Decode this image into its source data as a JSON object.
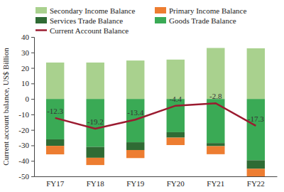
{
  "chart_data": {
    "type": "bar",
    "stacked": true,
    "legend": "top",
    "y_label": "Current account balance, US$ Billion",
    "categories": [
      "FY17",
      "FY18",
      "FY19",
      "FY20",
      "FY21",
      "FY22"
    ],
    "series": [
      {
        "name": "Secondary Income Balance",
        "type": "bar",
        "color": "#a9d18e",
        "values": [
          23.5,
          23.5,
          24.8,
          25.4,
          32.9,
          32.7
        ]
      },
      {
        "name": "Primary Income Balance",
        "type": "bar",
        "color": "#ed7d31",
        "values": [
          -5.5,
          -4.7,
          -5.2,
          -4.8,
          -5.2,
          -4.9
        ]
      },
      {
        "name": "Services Trade Balance",
        "type": "bar",
        "color": "#2f6b34",
        "values": [
          -4.2,
          -7.0,
          -5.0,
          -3.5,
          -2.0,
          -5.5
        ]
      },
      {
        "name": "Goods Trade Balance",
        "type": "bar",
        "color": "#3aaa55",
        "values": [
          -26.1,
          -31.0,
          -28.0,
          -21.5,
          -28.5,
          -39.6
        ]
      },
      {
        "name": "Current Account Balance",
        "type": "line",
        "color": "#9b1b30",
        "data_labels": true,
        "values": [
          -12.3,
          -19.2,
          -13.4,
          -4.4,
          -2.8,
          -17.3
        ]
      }
    ],
    "ylim": [
      -50,
      40
    ],
    "yticks": [
      -50,
      -40,
      -30,
      -20,
      -10,
      0,
      10,
      20,
      30,
      40
    ],
    "grid": false
  }
}
